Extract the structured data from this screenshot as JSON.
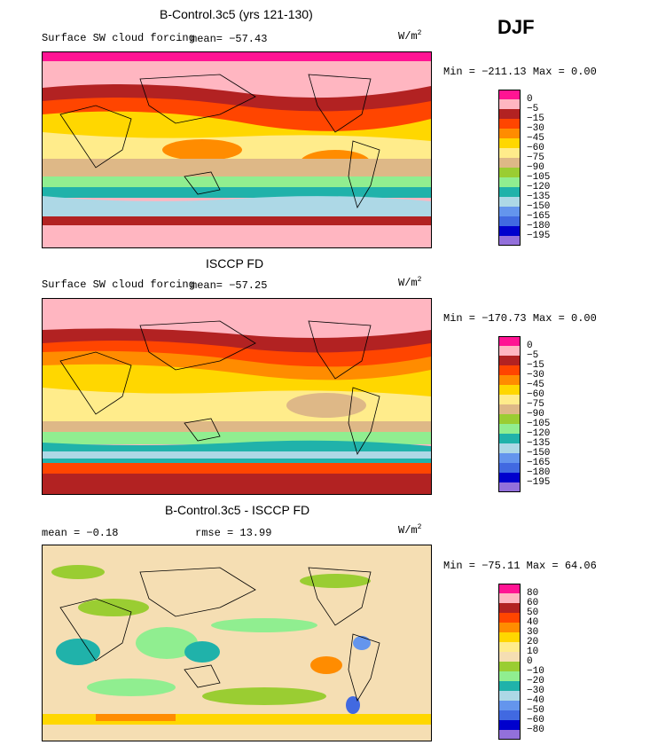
{
  "season": "DJF",
  "panels": [
    {
      "title": "B-Control.3c5 (yrs 121-130)",
      "subtitle": "Surface SW cloud forcing",
      "mean_text": "mean= −57.43",
      "units": "W/m",
      "units_sup": "2",
      "minmax": "Min = −211.13  Max =    0.00",
      "colorbar": {
        "labels": [
          "0",
          "−5",
          "−15",
          "−30",
          "−45",
          "−60",
          "−75",
          "−90",
          "−105",
          "−120",
          "−135",
          "−150",
          "−165",
          "−180",
          "−195"
        ],
        "colors": [
          "#ff1493",
          "#ffb6c1",
          "#b22222",
          "#ff4500",
          "#ff8c00",
          "#ffd700",
          "#ffec8b",
          "#deb887",
          "#9acd32",
          "#90ee90",
          "#20b2aa",
          "#add8e6",
          "#6495ed",
          "#4169e1",
          "#0000cd",
          "#9370db"
        ]
      }
    },
    {
      "title": "ISCCP FD",
      "subtitle": "Surface SW cloud forcing",
      "mean_text": "mean= −57.25",
      "units": "W/m",
      "units_sup": "2",
      "minmax": "Min = −170.73  Max =    0.00",
      "colorbar": {
        "labels": [
          "0",
          "−5",
          "−15",
          "−30",
          "−45",
          "−60",
          "−75",
          "−90",
          "−105",
          "−120",
          "−135",
          "−150",
          "−165",
          "−180",
          "−195"
        ],
        "colors": [
          "#ff1493",
          "#ffb6c1",
          "#b22222",
          "#ff4500",
          "#ff8c00",
          "#ffd700",
          "#ffec8b",
          "#deb887",
          "#9acd32",
          "#90ee90",
          "#20b2aa",
          "#add8e6",
          "#6495ed",
          "#4169e1",
          "#0000cd",
          "#9370db"
        ]
      }
    },
    {
      "title": "B-Control.3c5 - ISCCP FD",
      "mean_text": "mean =   −0.18",
      "rmse_text": "rmse =   13.99",
      "units": "W/m",
      "units_sup": "2",
      "minmax": "Min = −75.11  Max =   64.06",
      "colorbar": {
        "labels": [
          "80",
          "60",
          "50",
          "40",
          "30",
          "20",
          "10",
          "0",
          "−10",
          "−20",
          "−30",
          "−40",
          "−50",
          "−60",
          "−80"
        ],
        "colors": [
          "#ff1493",
          "#ffb6c1",
          "#b22222",
          "#ff4500",
          "#ff8c00",
          "#ffd700",
          "#ffec8b",
          "#f5deb3",
          "#9acd32",
          "#90ee90",
          "#20b2aa",
          "#add8e6",
          "#6495ed",
          "#4169e1",
          "#0000cd",
          "#9370db"
        ]
      }
    }
  ]
}
